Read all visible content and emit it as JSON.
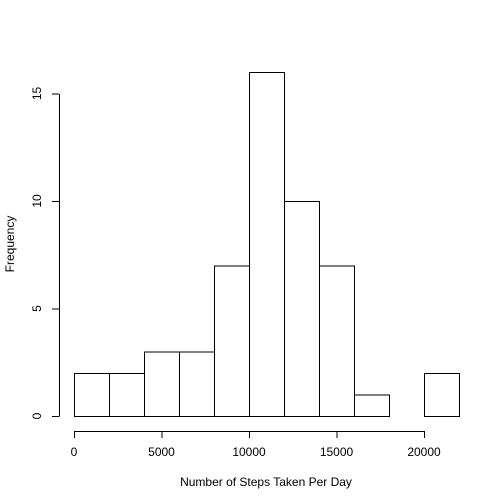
{
  "chart_data": {
    "type": "bar",
    "title": "",
    "xlabel": "Number of Steps Taken Per Day",
    "ylabel": "Frequency",
    "bins": [
      {
        "start": 0,
        "end": 2000,
        "count": 2
      },
      {
        "start": 2000,
        "end": 4000,
        "count": 2
      },
      {
        "start": 4000,
        "end": 6000,
        "count": 3
      },
      {
        "start": 6000,
        "end": 8000,
        "count": 3
      },
      {
        "start": 8000,
        "end": 10000,
        "count": 7
      },
      {
        "start": 10000,
        "end": 12000,
        "count": 16
      },
      {
        "start": 12000,
        "end": 14000,
        "count": 10
      },
      {
        "start": 14000,
        "end": 16000,
        "count": 7
      },
      {
        "start": 16000,
        "end": 18000,
        "count": 1
      },
      {
        "start": 18000,
        "end": 20000,
        "count": 0
      },
      {
        "start": 20000,
        "end": 22000,
        "count": 2
      }
    ],
    "xlim": [
      0,
      22000
    ],
    "ylim": [
      0,
      16
    ],
    "x_ticks": [
      0,
      5000,
      10000,
      15000,
      20000
    ],
    "x_tick_labels": [
      "0",
      "5000",
      "10000",
      "15000",
      "20000"
    ],
    "y_ticks": [
      0,
      5,
      10,
      15
    ],
    "y_tick_labels": [
      "0",
      "5",
      "10",
      "15"
    ],
    "grid": false,
    "bar_fill": "#ffffff",
    "bar_stroke": "#000000"
  }
}
